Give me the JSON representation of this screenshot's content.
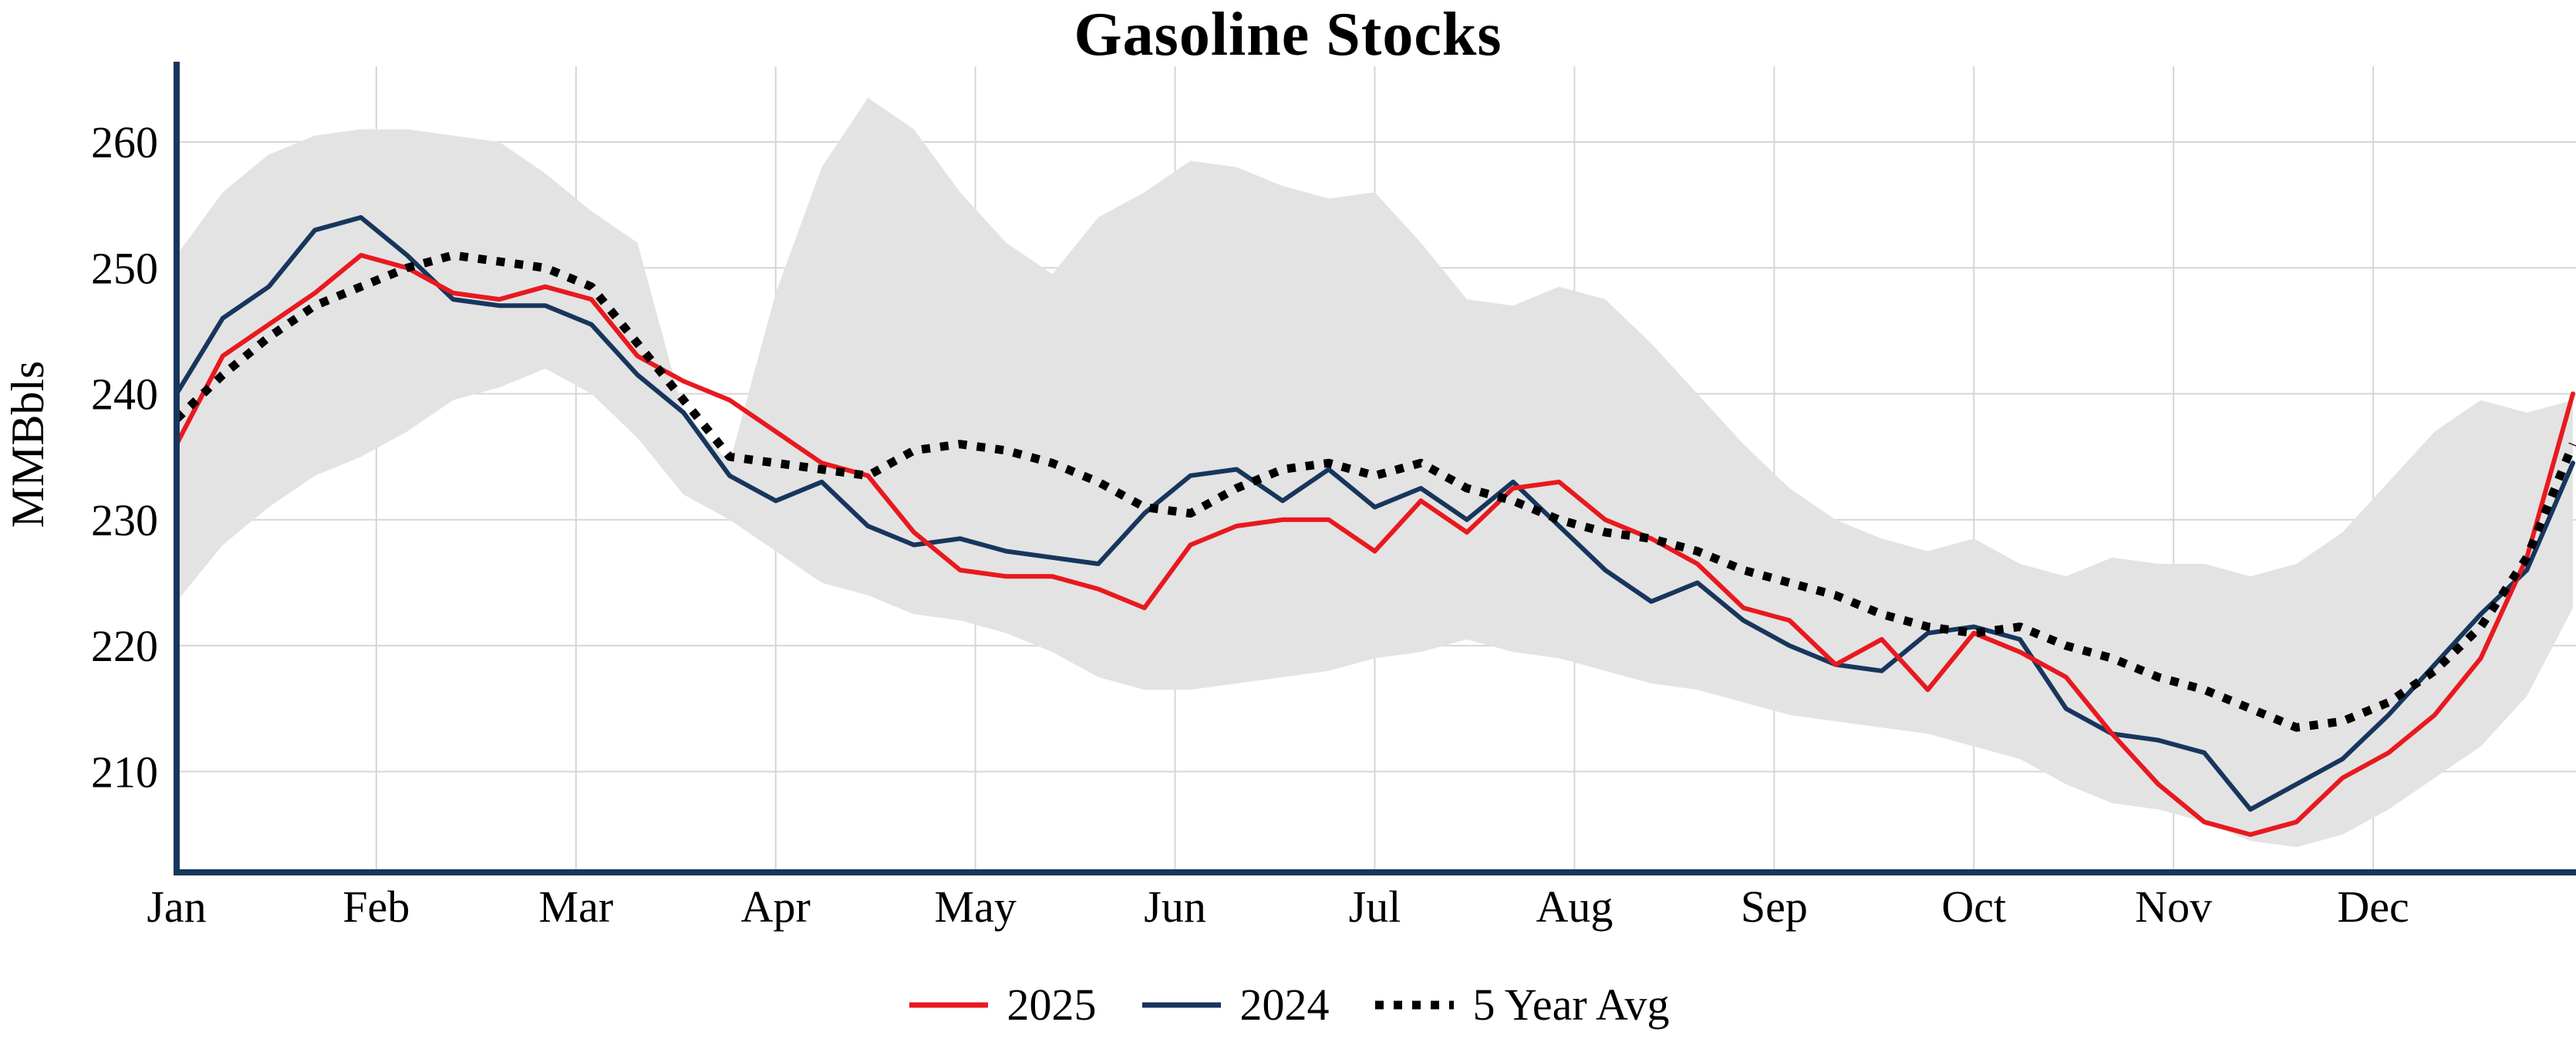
{
  "chart_data": {
    "type": "line",
    "title": "Gasoline Stocks",
    "ylabel": "MMBbls",
    "x_unit": "week-of-year",
    "weeks": 53,
    "month_tick_labels": [
      "Jan",
      "Feb",
      "Mar",
      "Apr",
      "May",
      "Jun",
      "Jul",
      "Aug",
      "Sep",
      "Oct",
      "Nov",
      "Dec"
    ],
    "yticks": [
      210,
      220,
      230,
      240,
      250,
      260
    ],
    "ylim": [
      202,
      266
    ],
    "grid": true,
    "legend_position": "bottom-center",
    "series": [
      {
        "name": "2025",
        "style": "solid",
        "color": "#e8191f",
        "values": [
          236,
          243,
          245.5,
          248,
          251,
          250,
          248,
          247.5,
          248.5,
          247.5,
          243,
          241,
          239.5,
          237,
          234.5,
          233.5,
          229,
          226,
          225.5,
          225.5,
          224.5,
          223,
          228,
          229.5,
          230,
          230,
          227.5,
          231.5,
          229,
          232.5,
          233,
          230,
          228.5,
          226.5,
          223,
          222,
          218.5,
          220.5,
          216.5,
          221,
          219.5,
          217.5,
          213,
          209,
          206,
          205,
          206,
          209.5,
          211.5,
          214.5,
          219,
          227,
          240
        ]
      },
      {
        "name": "2024",
        "style": "solid",
        "color": "#17365d",
        "values": [
          240,
          246,
          248.5,
          253,
          254,
          251,
          247.5,
          247,
          247,
          245.5,
          241.5,
          238.5,
          233.5,
          231.5,
          233,
          229.5,
          228,
          228.5,
          227.5,
          227,
          226.5,
          230.5,
          233.5,
          234,
          231.5,
          234,
          231,
          232.5,
          230,
          233,
          229.5,
          226,
          223.5,
          225,
          222,
          220,
          218.5,
          218,
          221,
          221.5,
          220.5,
          215,
          213,
          212.5,
          211.5,
          207,
          209,
          211,
          214.5,
          218.5,
          222.5,
          226,
          234.5
        ]
      },
      {
        "name": "5 Year Avg",
        "style": "dotted",
        "color": "#000000",
        "values": [
          238,
          241.5,
          244.5,
          247,
          248.5,
          250,
          251,
          250.5,
          250,
          248.5,
          244,
          239.5,
          235,
          234.5,
          234,
          233.5,
          235.5,
          236,
          235.5,
          234.5,
          233,
          231,
          230.5,
          232.5,
          234,
          234.5,
          233.5,
          234.5,
          232.5,
          231.5,
          230,
          229,
          228.5,
          227.5,
          226,
          225,
          224,
          222.5,
          221.5,
          221,
          221.5,
          220,
          219,
          217.5,
          216.5,
          215,
          213.5,
          214,
          215.5,
          218,
          221.5,
          227,
          236
        ]
      }
    ],
    "band": {
      "description": "shaded 5-year min-max range",
      "color": "#e3e3e3",
      "upper": [
        251,
        256,
        259,
        260.5,
        261,
        261,
        260.5,
        260,
        257.5,
        254.5,
        252,
        238.5,
        234.5,
        248,
        258,
        263.5,
        261,
        256,
        252,
        249.5,
        254,
        256,
        258.5,
        258,
        256.5,
        255.5,
        256,
        252,
        247.5,
        247,
        248.5,
        247.5,
        244,
        240,
        236,
        232.5,
        230,
        228.5,
        227.5,
        228.5,
        226.5,
        225.5,
        227,
        226.5,
        226.5,
        225.5,
        226.5,
        229,
        233,
        237,
        239.5,
        238.5,
        239.5
      ],
      "lower": [
        223.5,
        228,
        231,
        233.5,
        235,
        237,
        239.5,
        240.5,
        242,
        240,
        236.5,
        232,
        230,
        227.5,
        225,
        224,
        222.5,
        222,
        221,
        219.5,
        217.5,
        216.5,
        216.5,
        217,
        217.5,
        218,
        219,
        219.5,
        220.5,
        219.5,
        219,
        218,
        217,
        216.5,
        215.5,
        214.5,
        214,
        213.5,
        213,
        212,
        211,
        209,
        207.5,
        207,
        206,
        204.5,
        204,
        205,
        207,
        209.5,
        212,
        216,
        223
      ]
    },
    "style_colors": {
      "axis_spine": "#17365d",
      "gridline": "#d6d6d6",
      "background": "#ffffff"
    }
  }
}
